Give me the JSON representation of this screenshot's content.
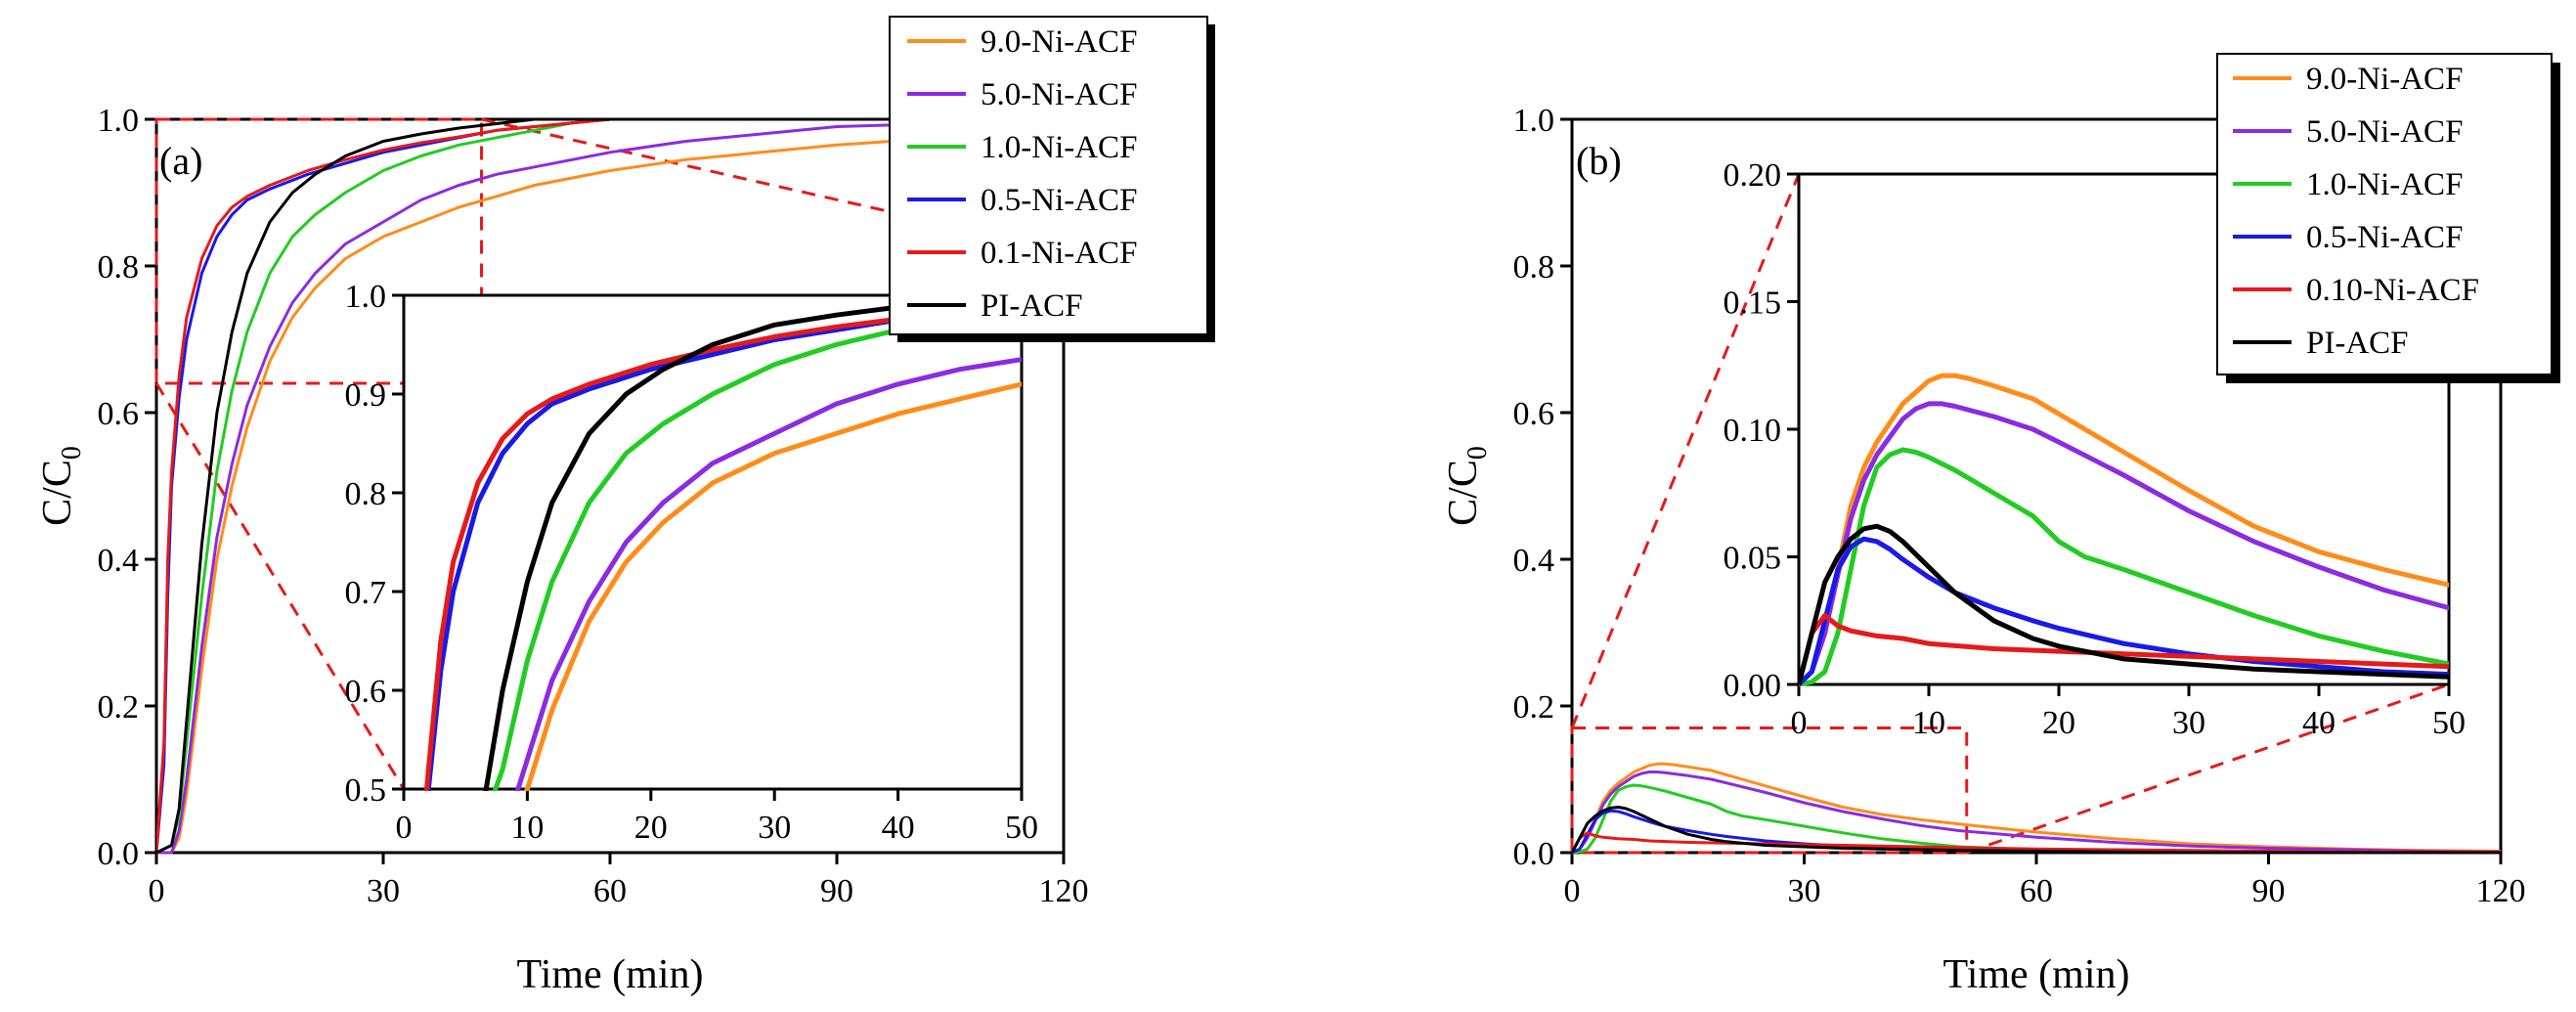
{
  "figure": {
    "panels": [
      "(a)",
      "(b)"
    ]
  },
  "chart_data": [
    {
      "type": "line",
      "panel_label": "(a)",
      "title": "",
      "xlabel": "Time (min)",
      "ylabel": "C/C",
      "ylabel_sub": "0",
      "xlim": [
        0,
        120
      ],
      "ylim": [
        0,
        1.0
      ],
      "xticks": [
        "0",
        "30",
        "60",
        "90",
        "120"
      ],
      "yticks": [
        "0.0",
        "0.2",
        "0.4",
        "0.6",
        "0.8",
        "1.0"
      ],
      "legend_position": "top-right",
      "series": [
        {
          "name": "9.0-Ni-ACF",
          "color": "#FF8C1A",
          "x": [
            0,
            2,
            3,
            4,
            6,
            8,
            10,
            12,
            15,
            18,
            21,
            25,
            30,
            35,
            40,
            45,
            50,
            60,
            70,
            80,
            90,
            100,
            110,
            120
          ],
          "y": [
            0,
            0,
            0.02,
            0.08,
            0.25,
            0.4,
            0.5,
            0.58,
            0.67,
            0.73,
            0.77,
            0.81,
            0.84,
            0.86,
            0.88,
            0.895,
            0.91,
            0.93,
            0.945,
            0.955,
            0.965,
            0.972,
            0.978,
            0.982
          ]
        },
        {
          "name": "5.0-Ni-ACF",
          "color": "#8B2BE2",
          "x": [
            0,
            2,
            3,
            4,
            6,
            8,
            10,
            12,
            15,
            18,
            21,
            25,
            30,
            35,
            40,
            45,
            50,
            60,
            70,
            80,
            90,
            100,
            110,
            120
          ],
          "y": [
            0,
            0,
            0.03,
            0.1,
            0.28,
            0.43,
            0.53,
            0.61,
            0.69,
            0.75,
            0.79,
            0.83,
            0.86,
            0.89,
            0.91,
            0.925,
            0.935,
            0.955,
            0.97,
            0.98,
            0.99,
            0.993,
            0.995,
            0.997
          ]
        },
        {
          "name": "1.0-Ni-ACF",
          "color": "#22CC22",
          "x": [
            0,
            2,
            3,
            4,
            6,
            8,
            10,
            12,
            15,
            18,
            21,
            25,
            30,
            35,
            40,
            45,
            50,
            55,
            60,
            70,
            80,
            90,
            100,
            110,
            120
          ],
          "y": [
            0,
            0.01,
            0.05,
            0.15,
            0.35,
            0.52,
            0.63,
            0.71,
            0.79,
            0.84,
            0.87,
            0.9,
            0.93,
            0.95,
            0.965,
            0.975,
            0.985,
            0.995,
            1.0,
            1.0,
            1.0,
            1.0,
            1.0,
            1.0,
            1.0
          ]
        },
        {
          "name": "0.5-Ni-ACF",
          "color": "#1A1AE6",
          "x": [
            0,
            1,
            1.5,
            2,
            3,
            4,
            6,
            8,
            10,
            12,
            15,
            20,
            25,
            30,
            35,
            40,
            45,
            50,
            60,
            70,
            80,
            90,
            100,
            110,
            120
          ],
          "y": [
            0,
            0.12,
            0.35,
            0.5,
            0.62,
            0.7,
            0.79,
            0.84,
            0.87,
            0.89,
            0.905,
            0.925,
            0.94,
            0.955,
            0.965,
            0.975,
            0.985,
            0.99,
            1.0,
            1.0,
            1.0,
            1.0,
            1.0,
            1.0,
            1.0
          ]
        },
        {
          "name": "0.1-Ni-ACF",
          "color": "#E61A1A",
          "x": [
            0,
            1,
            1.5,
            2,
            3,
            4,
            6,
            8,
            10,
            12,
            15,
            20,
            25,
            30,
            35,
            40,
            45,
            50,
            60,
            70,
            80,
            90,
            100,
            110,
            120
          ],
          "y": [
            0,
            0.15,
            0.4,
            0.52,
            0.65,
            0.73,
            0.81,
            0.855,
            0.88,
            0.895,
            0.91,
            0.93,
            0.945,
            0.958,
            0.968,
            0.976,
            0.985,
            0.99,
            1.0,
            1.0,
            1.0,
            1.0,
            1.0,
            1.0,
            1.0
          ]
        },
        {
          "name": "PI-ACF",
          "color": "#000000",
          "x": [
            0,
            2,
            3,
            4,
            6,
            8,
            10,
            12,
            15,
            18,
            21,
            25,
            30,
            35,
            40,
            45,
            50,
            60,
            70,
            80,
            90,
            100,
            110,
            120
          ],
          "y": [
            0,
            0.01,
            0.06,
            0.18,
            0.42,
            0.6,
            0.71,
            0.79,
            0.86,
            0.9,
            0.925,
            0.95,
            0.97,
            0.98,
            0.988,
            0.994,
            1.0,
            1.0,
            1.0,
            1.0,
            1.0,
            1.0,
            1.0,
            1.0
          ]
        }
      ]
    },
    {
      "type": "line",
      "panel_label": "(a) inset",
      "xlim": [
        0,
        50
      ],
      "ylim": [
        0.5,
        1.0
      ],
      "xticks": [
        "0",
        "10",
        "20",
        "30",
        "40",
        "50"
      ],
      "yticks": [
        "0.5",
        "0.6",
        "0.7",
        "0.8",
        "0.9",
        "1.0"
      ],
      "zoom_region": {
        "x": [
          0,
          43
        ],
        "y": [
          0.64,
          1.0
        ]
      }
    },
    {
      "type": "line",
      "panel_label": "(b)",
      "title": "",
      "xlabel": "Time (min)",
      "ylabel": "C/C",
      "ylabel_sub": "0",
      "xlim": [
        0,
        120
      ],
      "ylim": [
        0,
        1.0
      ],
      "xticks": [
        "0",
        "30",
        "60",
        "90",
        "120"
      ],
      "yticks": [
        "0.0",
        "0.2",
        "0.4",
        "0.6",
        "0.8",
        "1.0"
      ],
      "legend_position": "top-right",
      "series": [
        {
          "name": "9.0-Ni-ACF",
          "color": "#FF8C1A",
          "x": [
            0,
            1,
            2,
            3,
            4,
            5,
            6,
            8,
            10,
            11,
            12,
            13,
            15,
            18,
            20,
            25,
            30,
            35,
            40,
            45,
            50,
            60,
            70,
            80,
            90,
            100,
            110,
            120
          ],
          "y": [
            0,
            0.005,
            0.02,
            0.045,
            0.07,
            0.085,
            0.095,
            0.11,
            0.119,
            0.121,
            0.121,
            0.12,
            0.117,
            0.112,
            0.106,
            0.091,
            0.076,
            0.062,
            0.052,
            0.045,
            0.039,
            0.028,
            0.019,
            0.012,
            0.008,
            0.005,
            0.003,
            0.002
          ]
        },
        {
          "name": "5.0-Ni-ACF",
          "color": "#8B2BE2",
          "x": [
            0,
            1,
            2,
            3,
            4,
            5,
            6,
            8,
            9,
            10,
            11,
            12,
            15,
            18,
            20,
            25,
            30,
            35,
            40,
            45,
            50,
            60,
            70,
            80,
            90,
            100,
            110,
            120
          ],
          "y": [
            0,
            0.005,
            0.02,
            0.043,
            0.065,
            0.08,
            0.09,
            0.104,
            0.108,
            0.11,
            0.11,
            0.109,
            0.105,
            0.1,
            0.095,
            0.082,
            0.068,
            0.056,
            0.046,
            0.037,
            0.03,
            0.021,
            0.014,
            0.009,
            0.006,
            0.004,
            0.002,
            0.001
          ]
        },
        {
          "name": "1.0-Ni-ACF",
          "color": "#22CC22",
          "x": [
            0,
            1,
            2,
            3,
            4,
            5,
            6,
            7,
            8,
            9,
            10,
            12,
            14,
            16,
            18,
            20,
            22,
            25,
            30,
            35,
            40,
            45,
            50,
            60,
            70,
            80,
            90,
            100,
            110,
            120
          ],
          "y": [
            0,
            0.001,
            0.005,
            0.02,
            0.045,
            0.07,
            0.085,
            0.09,
            0.092,
            0.091,
            0.089,
            0.084,
            0.078,
            0.072,
            0.066,
            0.056,
            0.05,
            0.045,
            0.036,
            0.027,
            0.019,
            0.013,
            0.008,
            0.004,
            0.002,
            0.001,
            0.001,
            0.0,
            0.0,
            0.0
          ]
        },
        {
          "name": "0.5-Ni-ACF",
          "color": "#1A1AE6",
          "x": [
            0,
            1,
            2,
            3,
            4,
            5,
            6,
            7,
            8,
            10,
            12,
            15,
            18,
            20,
            25,
            30,
            35,
            40,
            45,
            50,
            60,
            70,
            80,
            90,
            100,
            110,
            120
          ],
          "y": [
            0,
            0.005,
            0.025,
            0.045,
            0.054,
            0.057,
            0.056,
            0.053,
            0.049,
            0.042,
            0.036,
            0.03,
            0.025,
            0.022,
            0.016,
            0.012,
            0.009,
            0.007,
            0.005,
            0.004,
            0.002,
            0.001,
            0.001,
            0.0,
            0.0,
            0.0,
            0.0
          ]
        },
        {
          "name": "0.10-Ni-ACF",
          "color": "#E61A1A",
          "x": [
            0,
            1,
            2,
            3,
            4,
            5,
            6,
            8,
            10,
            15,
            20,
            25,
            30,
            35,
            40,
            45,
            50,
            60,
            70,
            80,
            90,
            100,
            110,
            120
          ],
          "y": [
            0,
            0.02,
            0.027,
            0.023,
            0.021,
            0.02,
            0.019,
            0.018,
            0.016,
            0.014,
            0.013,
            0.012,
            0.011,
            0.01,
            0.009,
            0.008,
            0.007,
            0.005,
            0.004,
            0.003,
            0.002,
            0.001,
            0.001,
            0.001
          ]
        },
        {
          "name": "PI-ACF",
          "color": "#000000",
          "x": [
            0,
            1,
            2,
            3,
            4,
            5,
            6,
            7,
            8,
            10,
            12,
            15,
            18,
            20,
            25,
            30,
            35,
            40,
            45,
            50,
            60,
            70,
            80,
            90,
            100,
            110,
            120
          ],
          "y": [
            0,
            0.02,
            0.04,
            0.05,
            0.057,
            0.061,
            0.062,
            0.06,
            0.056,
            0.046,
            0.036,
            0.025,
            0.018,
            0.015,
            0.01,
            0.008,
            0.006,
            0.005,
            0.004,
            0.003,
            0.002,
            0.001,
            0.0,
            0.0,
            0.0,
            0.0,
            0.0
          ]
        }
      ]
    },
    {
      "type": "line",
      "panel_label": "(b) inset",
      "xlim": [
        0,
        50
      ],
      "ylim": [
        0,
        0.2
      ],
      "xticks": [
        "0",
        "10",
        "20",
        "30",
        "40",
        "50"
      ],
      "yticks": [
        "0.00",
        "0.05",
        "0.10",
        "0.15",
        "0.20"
      ],
      "zoom_region": {
        "x": [
          0,
          51
        ],
        "y": [
          0,
          0.17
        ]
      }
    }
  ]
}
